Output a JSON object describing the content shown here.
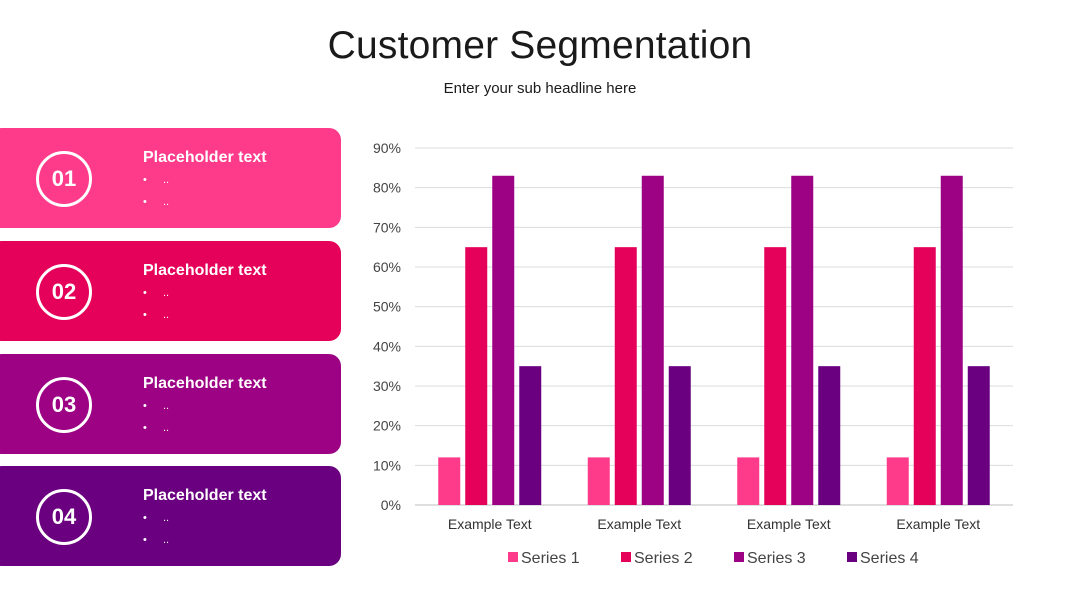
{
  "header": {
    "title": "Customer Segmentation",
    "subtitle": "Enter your sub headline here"
  },
  "cards": [
    {
      "number": "01",
      "title": "Placeholder text",
      "bullets": [
        "..",
        ".."
      ],
      "color": "#fe3a8a"
    },
    {
      "number": "02",
      "title": "Placeholder text",
      "bullets": [
        "..",
        ".."
      ],
      "color": "#e5005a"
    },
    {
      "number": "03",
      "title": "Placeholder text",
      "bullets": [
        "..",
        ".."
      ],
      "color": "#9c0283"
    },
    {
      "number": "04",
      "title": "Placeholder text",
      "bullets": [
        "..",
        ".."
      ],
      "color": "#6a0080"
    }
  ],
  "chart_data": {
    "type": "bar",
    "title": "",
    "xlabel": "",
    "ylabel": "",
    "categories": [
      "Example Text",
      "Example Text",
      "Example Text",
      "Example Text"
    ],
    "series": [
      {
        "name": "Series 1",
        "values": [
          12,
          12,
          12,
          12
        ],
        "color": "#fe3a8a"
      },
      {
        "name": "Series 2",
        "values": [
          65,
          65,
          65,
          65
        ],
        "color": "#e5005a"
      },
      {
        "name": "Series 3",
        "values": [
          83,
          83,
          83,
          83
        ],
        "color": "#9c0283"
      },
      {
        "name": "Series 4",
        "values": [
          35,
          35,
          35,
          35
        ],
        "color": "#6a0080"
      }
    ],
    "ylim": [
      0,
      90
    ],
    "yticks": [
      "0%",
      "10%",
      "20%",
      "30%",
      "40%",
      "50%",
      "60%",
      "70%",
      "80%",
      "90%"
    ],
    "grid": true,
    "legend": "bottom"
  }
}
